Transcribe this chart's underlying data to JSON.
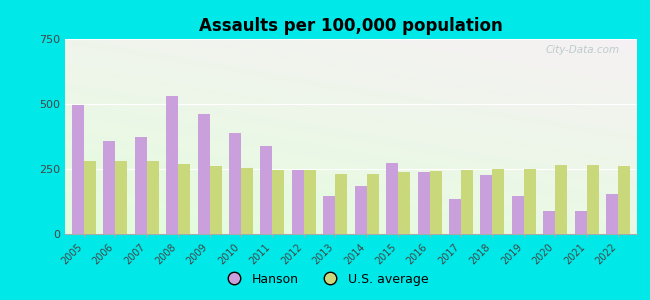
{
  "title": "Assaults per 100,000 population",
  "years": [
    2005,
    2006,
    2007,
    2008,
    2009,
    2010,
    2011,
    2012,
    2013,
    2014,
    2015,
    2016,
    2017,
    2018,
    2019,
    2020,
    2021,
    2022
  ],
  "hanson": [
    498,
    358,
    375,
    530,
    462,
    390,
    340,
    248,
    148,
    185,
    272,
    238,
    135,
    228,
    148,
    88,
    88,
    155
  ],
  "us_avg": [
    280,
    280,
    280,
    270,
    262,
    255,
    248,
    248,
    232,
    230,
    240,
    243,
    248,
    250,
    250,
    265,
    265,
    262
  ],
  "hanson_color": "#c9a0dc",
  "us_avg_color": "#c8d87a",
  "outer_bg": "#00e8e8",
  "ylim": [
    0,
    750
  ],
  "yticks": [
    0,
    250,
    500,
    750
  ],
  "bar_width": 0.38,
  "legend_hanson": "Hanson",
  "legend_us": "U.S. average",
  "bg_colors": [
    "#e8f5e0",
    "#f8fff5",
    "#ffffff"
  ],
  "watermark": "City-Data.com"
}
